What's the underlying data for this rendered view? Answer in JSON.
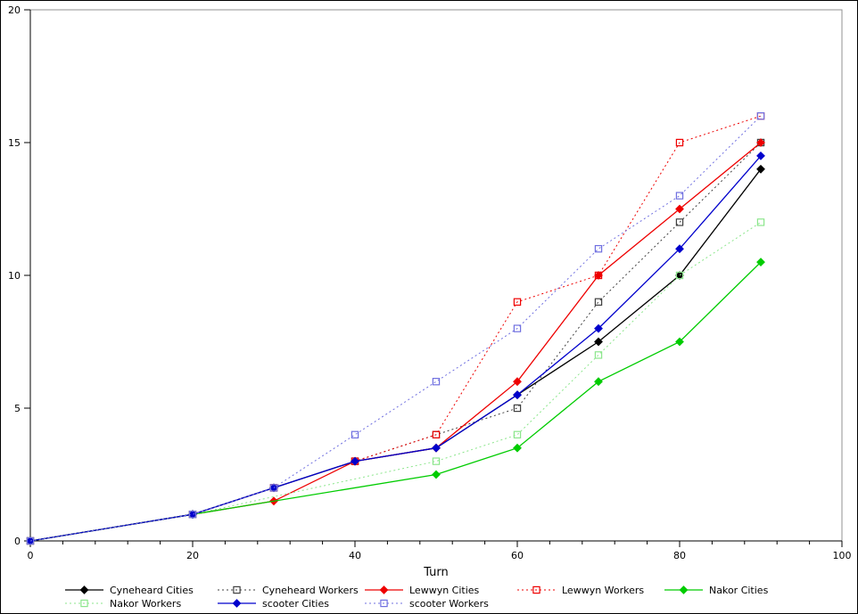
{
  "window": {
    "background_color": "#ffffff",
    "border_color": "#000000"
  },
  "chart_data": {
    "type": "line",
    "title": "",
    "xlabel": "Turn",
    "ylabel": "",
    "xlim": [
      0,
      100
    ],
    "ylim": [
      0,
      20
    ],
    "x_major_ticks": [
      0,
      20,
      40,
      60,
      80,
      100
    ],
    "x_minor_tick_step": 4,
    "y_major_ticks": [
      0,
      5,
      10,
      15,
      20
    ],
    "grid": false,
    "legend_position": "bottom",
    "frame_colors": {
      "axis": "#000000",
      "box_top_right": "#909090"
    },
    "series": [
      {
        "name": "Cyneheard Cities",
        "color": "#000000",
        "line_style": "solid",
        "marker": "filled-diamond",
        "points": [
          [
            0,
            0
          ],
          [
            20,
            1
          ],
          [
            30,
            2
          ],
          [
            40,
            3
          ],
          [
            50,
            3.5
          ],
          [
            60,
            5.5
          ],
          [
            70,
            7.5
          ],
          [
            80,
            10
          ],
          [
            90,
            14
          ]
        ]
      },
      {
        "name": "Cyneheard Workers",
        "color": "#404040",
        "line_style": "dotted",
        "marker": "open-square",
        "points": [
          [
            0,
            0
          ],
          [
            20,
            1
          ],
          [
            30,
            2
          ],
          [
            40,
            3
          ],
          [
            50,
            4
          ],
          [
            60,
            5
          ],
          [
            70,
            9
          ],
          [
            80,
            12
          ],
          [
            90,
            15
          ]
        ]
      },
      {
        "name": "Lewwyn Cities",
        "color": "#ee0000",
        "line_style": "solid",
        "marker": "filled-diamond",
        "points": [
          [
            0,
            0
          ],
          [
            20,
            1
          ],
          [
            30,
            1.5
          ],
          [
            40,
            3
          ],
          [
            50,
            3.5
          ],
          [
            60,
            6
          ],
          [
            70,
            10
          ],
          [
            80,
            12.5
          ],
          [
            90,
            15
          ]
        ]
      },
      {
        "name": "Lewwyn Workers",
        "color": "#ee0000",
        "line_style": "dotted",
        "marker": "open-square",
        "points": [
          [
            0,
            0
          ],
          [
            20,
            1
          ],
          [
            30,
            2
          ],
          [
            40,
            3
          ],
          [
            50,
            4
          ],
          [
            60,
            9
          ],
          [
            70,
            10
          ],
          [
            80,
            15
          ],
          [
            90,
            16
          ]
        ]
      },
      {
        "name": "Nakor Cities",
        "color": "#00cc00",
        "line_style": "solid",
        "marker": "filled-diamond",
        "points": [
          [
            0,
            0
          ],
          [
            20,
            1
          ],
          [
            50,
            2.5
          ],
          [
            60,
            3.5
          ],
          [
            70,
            6
          ],
          [
            80,
            7.5
          ],
          [
            90,
            10.5
          ]
        ]
      },
      {
        "name": "Nakor Workers",
        "color": "#8ce68c",
        "line_style": "dotted",
        "marker": "open-square",
        "points": [
          [
            0,
            0
          ],
          [
            20,
            1
          ],
          [
            50,
            3
          ],
          [
            60,
            4
          ],
          [
            70,
            7
          ],
          [
            80,
            10
          ],
          [
            90,
            12
          ]
        ]
      },
      {
        "name": "scooter Cities",
        "color": "#0000cc",
        "line_style": "solid",
        "marker": "filled-diamond",
        "points": [
          [
            0,
            0
          ],
          [
            20,
            1
          ],
          [
            30,
            2
          ],
          [
            40,
            3
          ],
          [
            50,
            3.5
          ],
          [
            60,
            5.5
          ],
          [
            70,
            8
          ],
          [
            80,
            11
          ],
          [
            90,
            14.5
          ]
        ]
      },
      {
        "name": "scooter Workers",
        "color": "#7070e0",
        "line_style": "dotted",
        "marker": "open-square",
        "points": [
          [
            0,
            0
          ],
          [
            20,
            1
          ],
          [
            30,
            2
          ],
          [
            40,
            4
          ],
          [
            50,
            6
          ],
          [
            60,
            8
          ],
          [
            70,
            11
          ],
          [
            80,
            13
          ],
          [
            90,
            16
          ]
        ]
      }
    ],
    "legend_rows": [
      [
        "Cyneheard Cities",
        "Cyneheard Workers",
        "Lewwyn Cities",
        "Lewwyn Workers",
        "Nakor Cities"
      ],
      [
        "Nakor Workers",
        "scooter Cities",
        "scooter Workers"
      ]
    ]
  }
}
